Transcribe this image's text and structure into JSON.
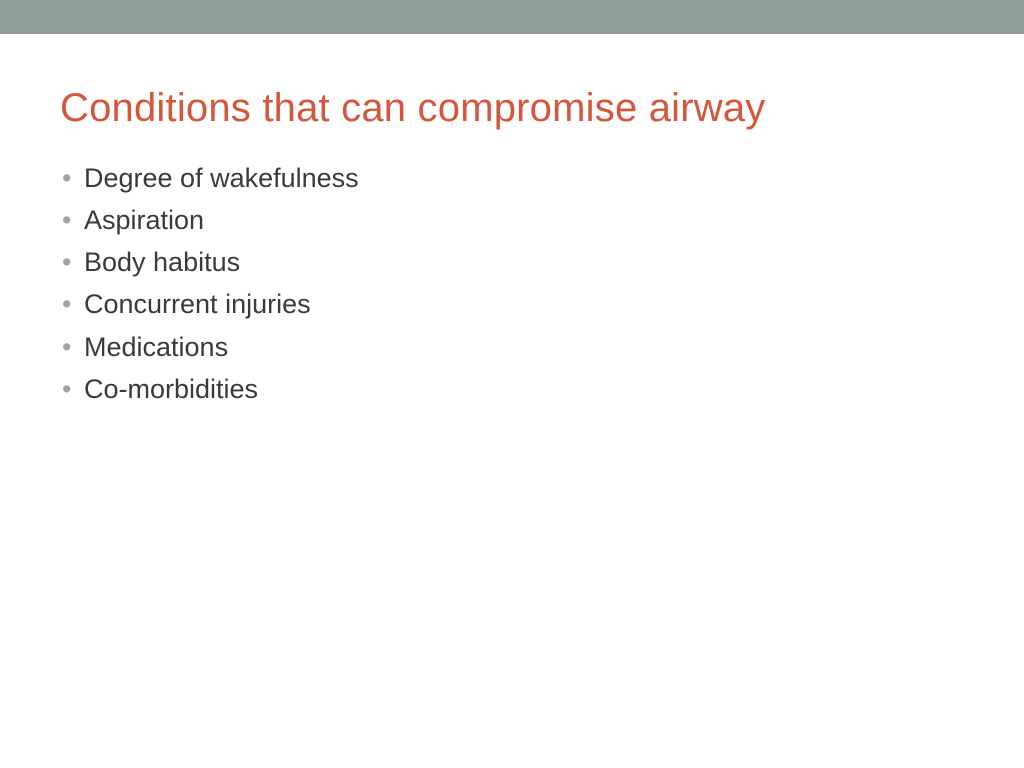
{
  "slide": {
    "top_bar_color": "#8f9f97",
    "background_color": "#ffffff",
    "title": "Conditions that can compromise airway",
    "title_color": "#d6563c",
    "title_fontsize": 40,
    "bullet_color": "#9da79f",
    "body_text_color": "#3a3a3a",
    "body_fontsize": 27,
    "bullets": [
      "Degree of wakefulness",
      "Aspiration",
      "Body habitus",
      "Concurrent injuries",
      "Medications",
      "Co-morbidities"
    ]
  }
}
